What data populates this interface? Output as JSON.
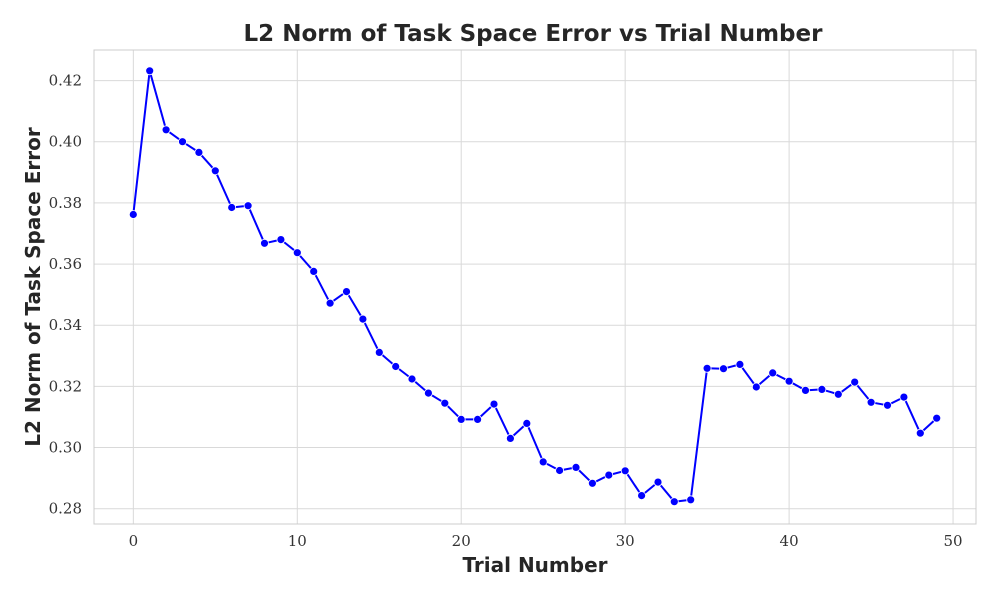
{
  "chart_data": {
    "type": "line",
    "title": "L2 Norm of Task Space Error vs Trial Number",
    "xlabel": "Trial Number",
    "ylabel": "L2 Norm of Task Space Error",
    "xlim": [
      -2.4,
      51.4
    ],
    "ylim": [
      0.275,
      0.43
    ],
    "xticks": [
      0,
      10,
      20,
      30,
      40,
      50
    ],
    "yticks": [
      0.28,
      0.3,
      0.32,
      0.34,
      0.36,
      0.38,
      0.4,
      0.42
    ],
    "ytick_labels": [
      "0.28",
      "0.30",
      "0.32",
      "0.34",
      "0.36",
      "0.38",
      "0.40",
      "0.42"
    ],
    "grid": true,
    "legend": null,
    "marker": "circle",
    "color": "#0000ff",
    "x": [
      0,
      1,
      2,
      3,
      4,
      5,
      6,
      7,
      8,
      9,
      10,
      11,
      12,
      13,
      14,
      15,
      16,
      17,
      18,
      19,
      20,
      21,
      22,
      23,
      24,
      25,
      26,
      27,
      28,
      29,
      30,
      31,
      32,
      33,
      34,
      35,
      36,
      37,
      38,
      39,
      40,
      41,
      42,
      43,
      44,
      45,
      46,
      47,
      48,
      49
    ],
    "y": [
      0.3762,
      0.4232,
      0.4039,
      0.4,
      0.3965,
      0.3905,
      0.3785,
      0.3791,
      0.3668,
      0.368,
      0.3637,
      0.3576,
      0.3472,
      0.351,
      0.342,
      0.3311,
      0.3265,
      0.3224,
      0.3178,
      0.3145,
      0.3092,
      0.3092,
      0.3142,
      0.303,
      0.3079,
      0.2953,
      0.2925,
      0.2935,
      0.2883,
      0.291,
      0.2924,
      0.2843,
      0.2887,
      0.2823,
      0.2829,
      0.3259,
      0.3258,
      0.3272,
      0.3198,
      0.3244,
      0.3217,
      0.3187,
      0.319,
      0.3174,
      0.3214,
      0.3148,
      0.3138,
      0.3165,
      0.3047,
      0.3096
    ]
  }
}
